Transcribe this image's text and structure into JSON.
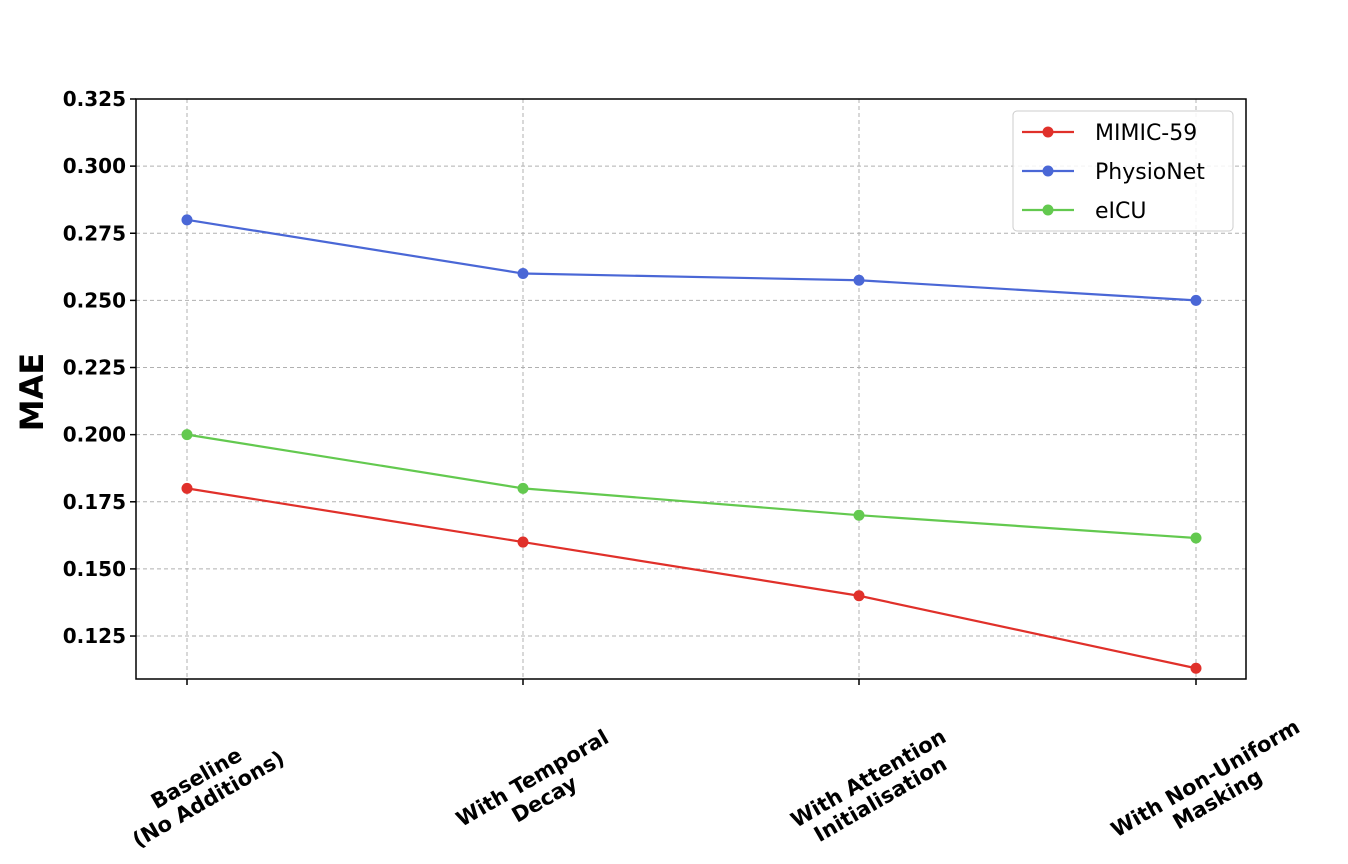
{
  "chart_data": {
    "type": "line",
    "title": "",
    "xlabel": "",
    "ylabel": "MAE",
    "categories": [
      [
        "Baseline",
        "(No Additions)"
      ],
      [
        "With Temporal",
        "Decay"
      ],
      [
        "With Attention",
        "Initialisation"
      ],
      [
        "With Non-Uniform",
        "Masking"
      ]
    ],
    "ylim": [
      0.109,
      0.325
    ],
    "yticks": [
      "0.125",
      "0.150",
      "0.175",
      "0.200",
      "0.225",
      "0.250",
      "0.275",
      "0.300",
      "0.325"
    ],
    "grid": true,
    "legend_position": "top-right",
    "series": [
      {
        "name": "MIMIC-59",
        "color": "#e0302a",
        "values": [
          0.18,
          0.16,
          0.14,
          0.113
        ]
      },
      {
        "name": "PhysioNet",
        "color": "#4a67d6",
        "values": [
          0.28,
          0.26,
          0.2575,
          0.25
        ]
      },
      {
        "name": "eICU",
        "color": "#63c94f",
        "values": [
          0.2,
          0.18,
          0.17,
          0.1615
        ]
      }
    ]
  }
}
